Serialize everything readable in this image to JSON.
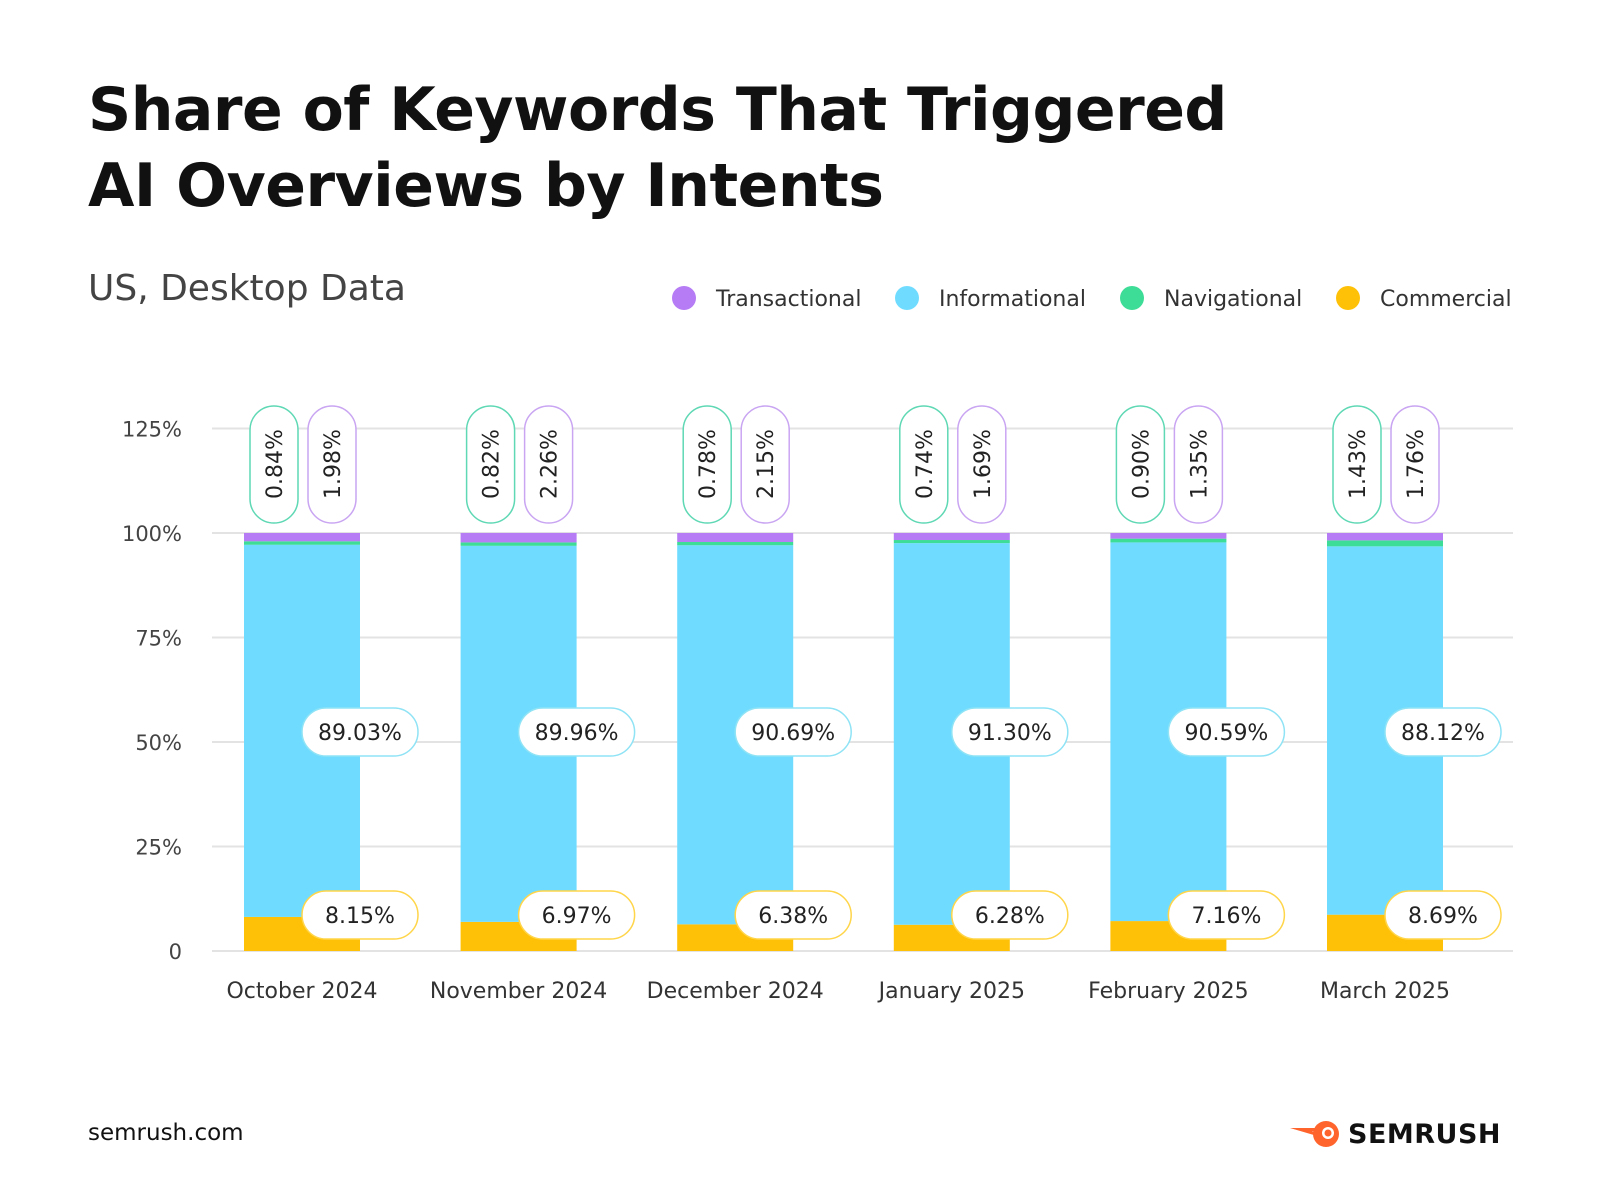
{
  "title_line1": "Share of Keywords That Triggered",
  "title_line2": "AI Overviews by Intents",
  "subtitle": "US, Desktop Data",
  "footer": {
    "site": "semrush.com",
    "logo_text": "SEMRUSH",
    "logo_color": "#ff642d"
  },
  "chart_data": {
    "type": "bar",
    "stacked": true,
    "title": "Share of Keywords That Triggered AI Overviews by Intents",
    "subtitle": "US, Desktop Data",
    "categories": [
      "October 2024",
      "November 2024",
      "December 2024",
      "January 2025",
      "February 2025",
      "March 2025"
    ],
    "series": [
      {
        "name": "Commercial",
        "color": "#ffc107",
        "values": [
          8.15,
          6.97,
          6.38,
          6.28,
          7.16,
          8.69
        ]
      },
      {
        "name": "Informational",
        "color": "#6fdcff",
        "values": [
          89.03,
          89.96,
          90.69,
          91.3,
          90.59,
          88.12
        ]
      },
      {
        "name": "Navigational",
        "color": "#3ddc97",
        "values": [
          0.84,
          0.82,
          0.78,
          0.74,
          0.9,
          1.43
        ]
      },
      {
        "name": "Transactional",
        "color": "#b57cf5",
        "values": [
          1.98,
          2.26,
          2.15,
          1.69,
          1.35,
          1.76
        ]
      }
    ],
    "legend_order": [
      "Transactional",
      "Informational",
      "Navigational",
      "Commercial"
    ],
    "legend_position": "top-right",
    "yticks": [
      "0",
      "25%",
      "50%",
      "75%",
      "100%",
      "125%"
    ],
    "ylim": [
      0,
      125
    ],
    "grid": true,
    "value_format": "percent, 2 decimals"
  }
}
